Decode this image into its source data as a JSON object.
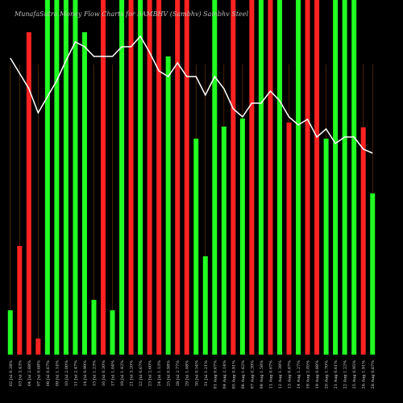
{
  "chart_data": {
    "type": "bar",
    "title": "MunafaSutra Money Flow Charts for SAMBHV (Sambhv) Sambhv Steel",
    "categories": [
      "02 Jul 0.38%",
      "03 Jul 3.43%",
      "04 Jul 2.88%",
      "07 Jul 0.68%",
      "08 Jul 0.67%",
      "09 Jul 1.14%",
      "10 Jul 2.00%",
      "11 Jul 2.47%",
      "14 Jul 0.99%",
      "15 Jul 1.23%",
      "16 Jul 0.30%",
      "17 Jul 1.04%",
      "18 Jul 1.42%",
      "21 Jul 3.20%",
      "22 Jul 0.67%",
      "23 Jul 2.60%",
      "24 Jul 1.13%",
      "25 Jul 0.98%",
      "28 Jul 2.77%",
      "29 Jul 1.08%",
      "30 Jul 0.54%",
      "31 Jul 1.21%",
      "01 Aug 0.67%",
      "04 Aug 2.14%",
      "05 Aug 0.91%",
      "06 Aug 1.62%",
      "07 Aug 0.39%",
      "08 Aug 1.58%",
      "11 Aug 0.67%",
      "12 Aug 1.38%",
      "13 Aug 0.67%",
      "14 Aug 1.27%",
      "18 Aug 2.05%",
      "19 Aug 0.88%",
      "20 Aug 1.70%",
      "21 Aug 0.61%",
      "22 Aug 1.22%",
      "25 Aug 0.95%",
      "26 Aug 1.91%",
      "28 Aug 0.67%"
    ],
    "values": [
      55,
      135,
      400,
      20,
      440,
      440,
      440,
      440,
      400,
      68,
      440,
      55,
      440,
      440,
      440,
      440,
      440,
      370,
      440,
      440,
      268,
      122,
      440,
      283,
      440,
      293,
      440,
      440,
      440,
      440,
      288,
      440,
      440,
      440,
      268,
      440,
      440,
      440,
      282,
      200
    ],
    "colors": [
      "#22ff22",
      "#ff2222",
      "#ff2222",
      "#ff2222",
      "#22ff22",
      "#22ff22",
      "#22ff22",
      "#22ff22",
      "#22ff22",
      "#22ff22",
      "#ff2222",
      "#22ff22",
      "#22ff22",
      "#ff2222",
      "#22ff22",
      "#ff2222",
      "#ff2222",
      "#22ff22",
      "#ff2222",
      "#ff2222",
      "#22ff22",
      "#22ff22",
      "#22ff22",
      "#22ff22",
      "#ff2222",
      "#22ff22",
      "#ff2222",
      "#22ff22",
      "#ff2222",
      "#22ff22",
      "#ff2222",
      "#22ff22",
      "#ff2222",
      "#ff2222",
      "#22ff22",
      "#22ff22",
      "#22ff22",
      "#22ff22",
      "#ff2222",
      "#22ff22"
    ],
    "line_values": [
      368,
      349,
      330,
      300,
      320,
      340,
      365,
      388,
      382,
      370,
      370,
      370,
      382,
      382,
      395,
      375,
      352,
      345,
      362,
      345,
      345,
      322,
      345,
      330,
      305,
      295,
      312,
      312,
      327,
      315,
      295,
      285,
      292,
      270,
      280,
      262,
      270,
      270,
      255,
      250
    ],
    "line_color": "#ffffff",
    "ylim": [
      0,
      440
    ]
  }
}
